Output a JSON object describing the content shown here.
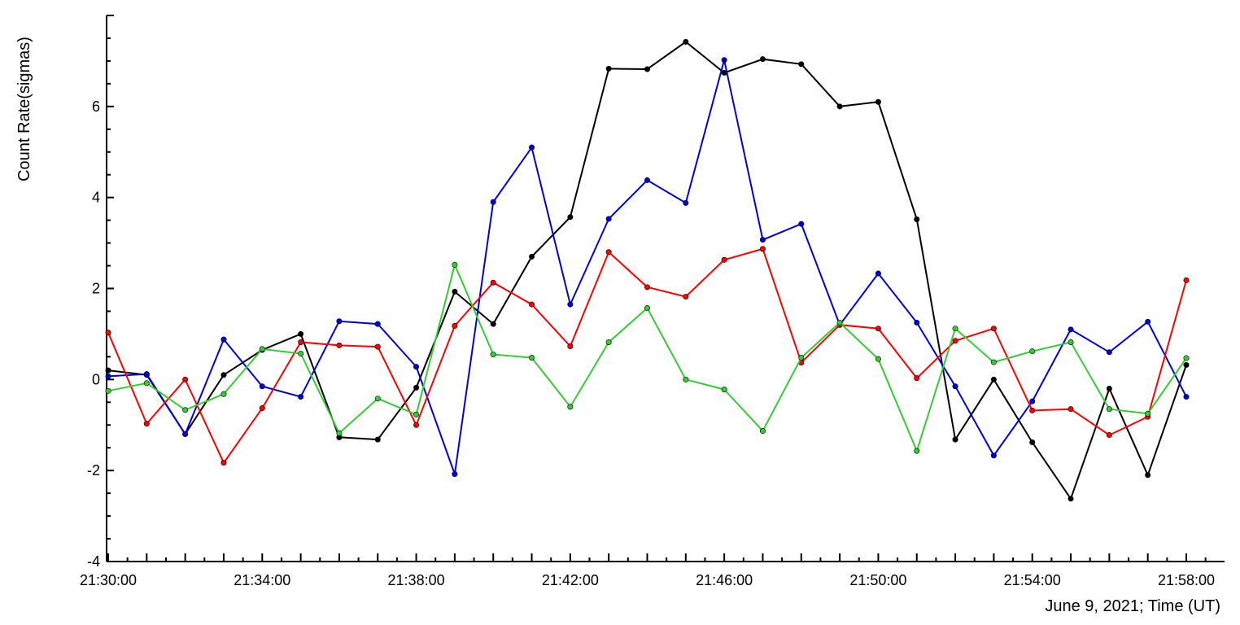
{
  "chart_data": {
    "type": "line",
    "title": "",
    "xlabel": "June 9, 2021; Time (UT)",
    "ylabel": "Count Rate(sigmas)",
    "x_unit": "time",
    "x_range": [
      "21:30:00",
      "21:58:00"
    ],
    "xlim": [
      "21:29:00",
      "21:59:00"
    ],
    "ylim": [
      -4,
      8
    ],
    "x_tick_labels": [
      "21:30:00",
      "21:34:00",
      "21:38:00",
      "21:42:00",
      "21:46:00",
      "21:50:00",
      "21:54:00",
      "21:58:00"
    ],
    "y_tick_labels": [
      "-4",
      "-2",
      "0",
      "2",
      "4",
      "6"
    ],
    "x": [
      "21:30:00",
      "21:31:00",
      "21:32:00",
      "21:33:00",
      "21:34:00",
      "21:35:00",
      "21:36:00",
      "21:37:00",
      "21:38:00",
      "21:39:00",
      "21:40:00",
      "21:41:00",
      "21:42:00",
      "21:43:00",
      "21:44:00",
      "21:45:00",
      "21:46:00",
      "21:47:00",
      "21:48:00",
      "21:49:00",
      "21:50:00",
      "21:51:00",
      "21:52:00",
      "21:53:00",
      "21:54:00",
      "21:55:00",
      "21:56:00",
      "21:57:00",
      "21:58:00"
    ],
    "grid": false,
    "series": [
      {
        "color": "#000000",
        "values": [
          0.2,
          0.1,
          -1.2,
          0.1,
          0.65,
          1.0,
          -1.27,
          -1.32,
          -0.18,
          1.93,
          1.22,
          2.7,
          3.57,
          6.83,
          6.82,
          7.42,
          6.74,
          7.04,
          6.93,
          6.0,
          6.1,
          3.52,
          -1.32,
          0.0,
          -1.38,
          -2.62,
          -0.2,
          -2.1,
          0.32
        ]
      },
      {
        "color": "#0000dd",
        "values": [
          0.07,
          0.12,
          -1.2,
          0.88,
          -0.15,
          -0.38,
          1.28,
          1.22,
          0.28,
          -2.08,
          3.9,
          5.1,
          1.65,
          3.53,
          4.38,
          3.88,
          7.02,
          3.07,
          3.42,
          1.2,
          2.33,
          1.25,
          -0.15,
          -1.67,
          -0.48,
          1.1,
          0.6,
          1.27,
          -0.38
        ]
      },
      {
        "color": "#ff0000",
        "values": [
          1.03,
          -0.97,
          0.0,
          -1.83,
          -0.63,
          0.82,
          0.75,
          0.72,
          -1.0,
          1.18,
          2.13,
          1.65,
          0.73,
          2.8,
          2.03,
          1.82,
          2.63,
          2.87,
          0.37,
          1.2,
          1.12,
          0.03,
          0.85,
          1.12,
          -0.68,
          -0.65,
          -1.22,
          -0.82,
          2.18
        ]
      },
      {
        "color": "#33cc33",
        "values": [
          -0.25,
          -0.08,
          -0.67,
          -0.32,
          0.67,
          0.57,
          -1.18,
          -0.42,
          -0.77,
          2.52,
          0.55,
          0.48,
          -0.6,
          0.82,
          1.57,
          0.0,
          -0.22,
          -1.13,
          0.48,
          1.25,
          0.45,
          -1.57,
          1.12,
          0.38,
          0.62,
          0.82,
          -0.65,
          -0.75,
          0.47
        ]
      }
    ]
  }
}
